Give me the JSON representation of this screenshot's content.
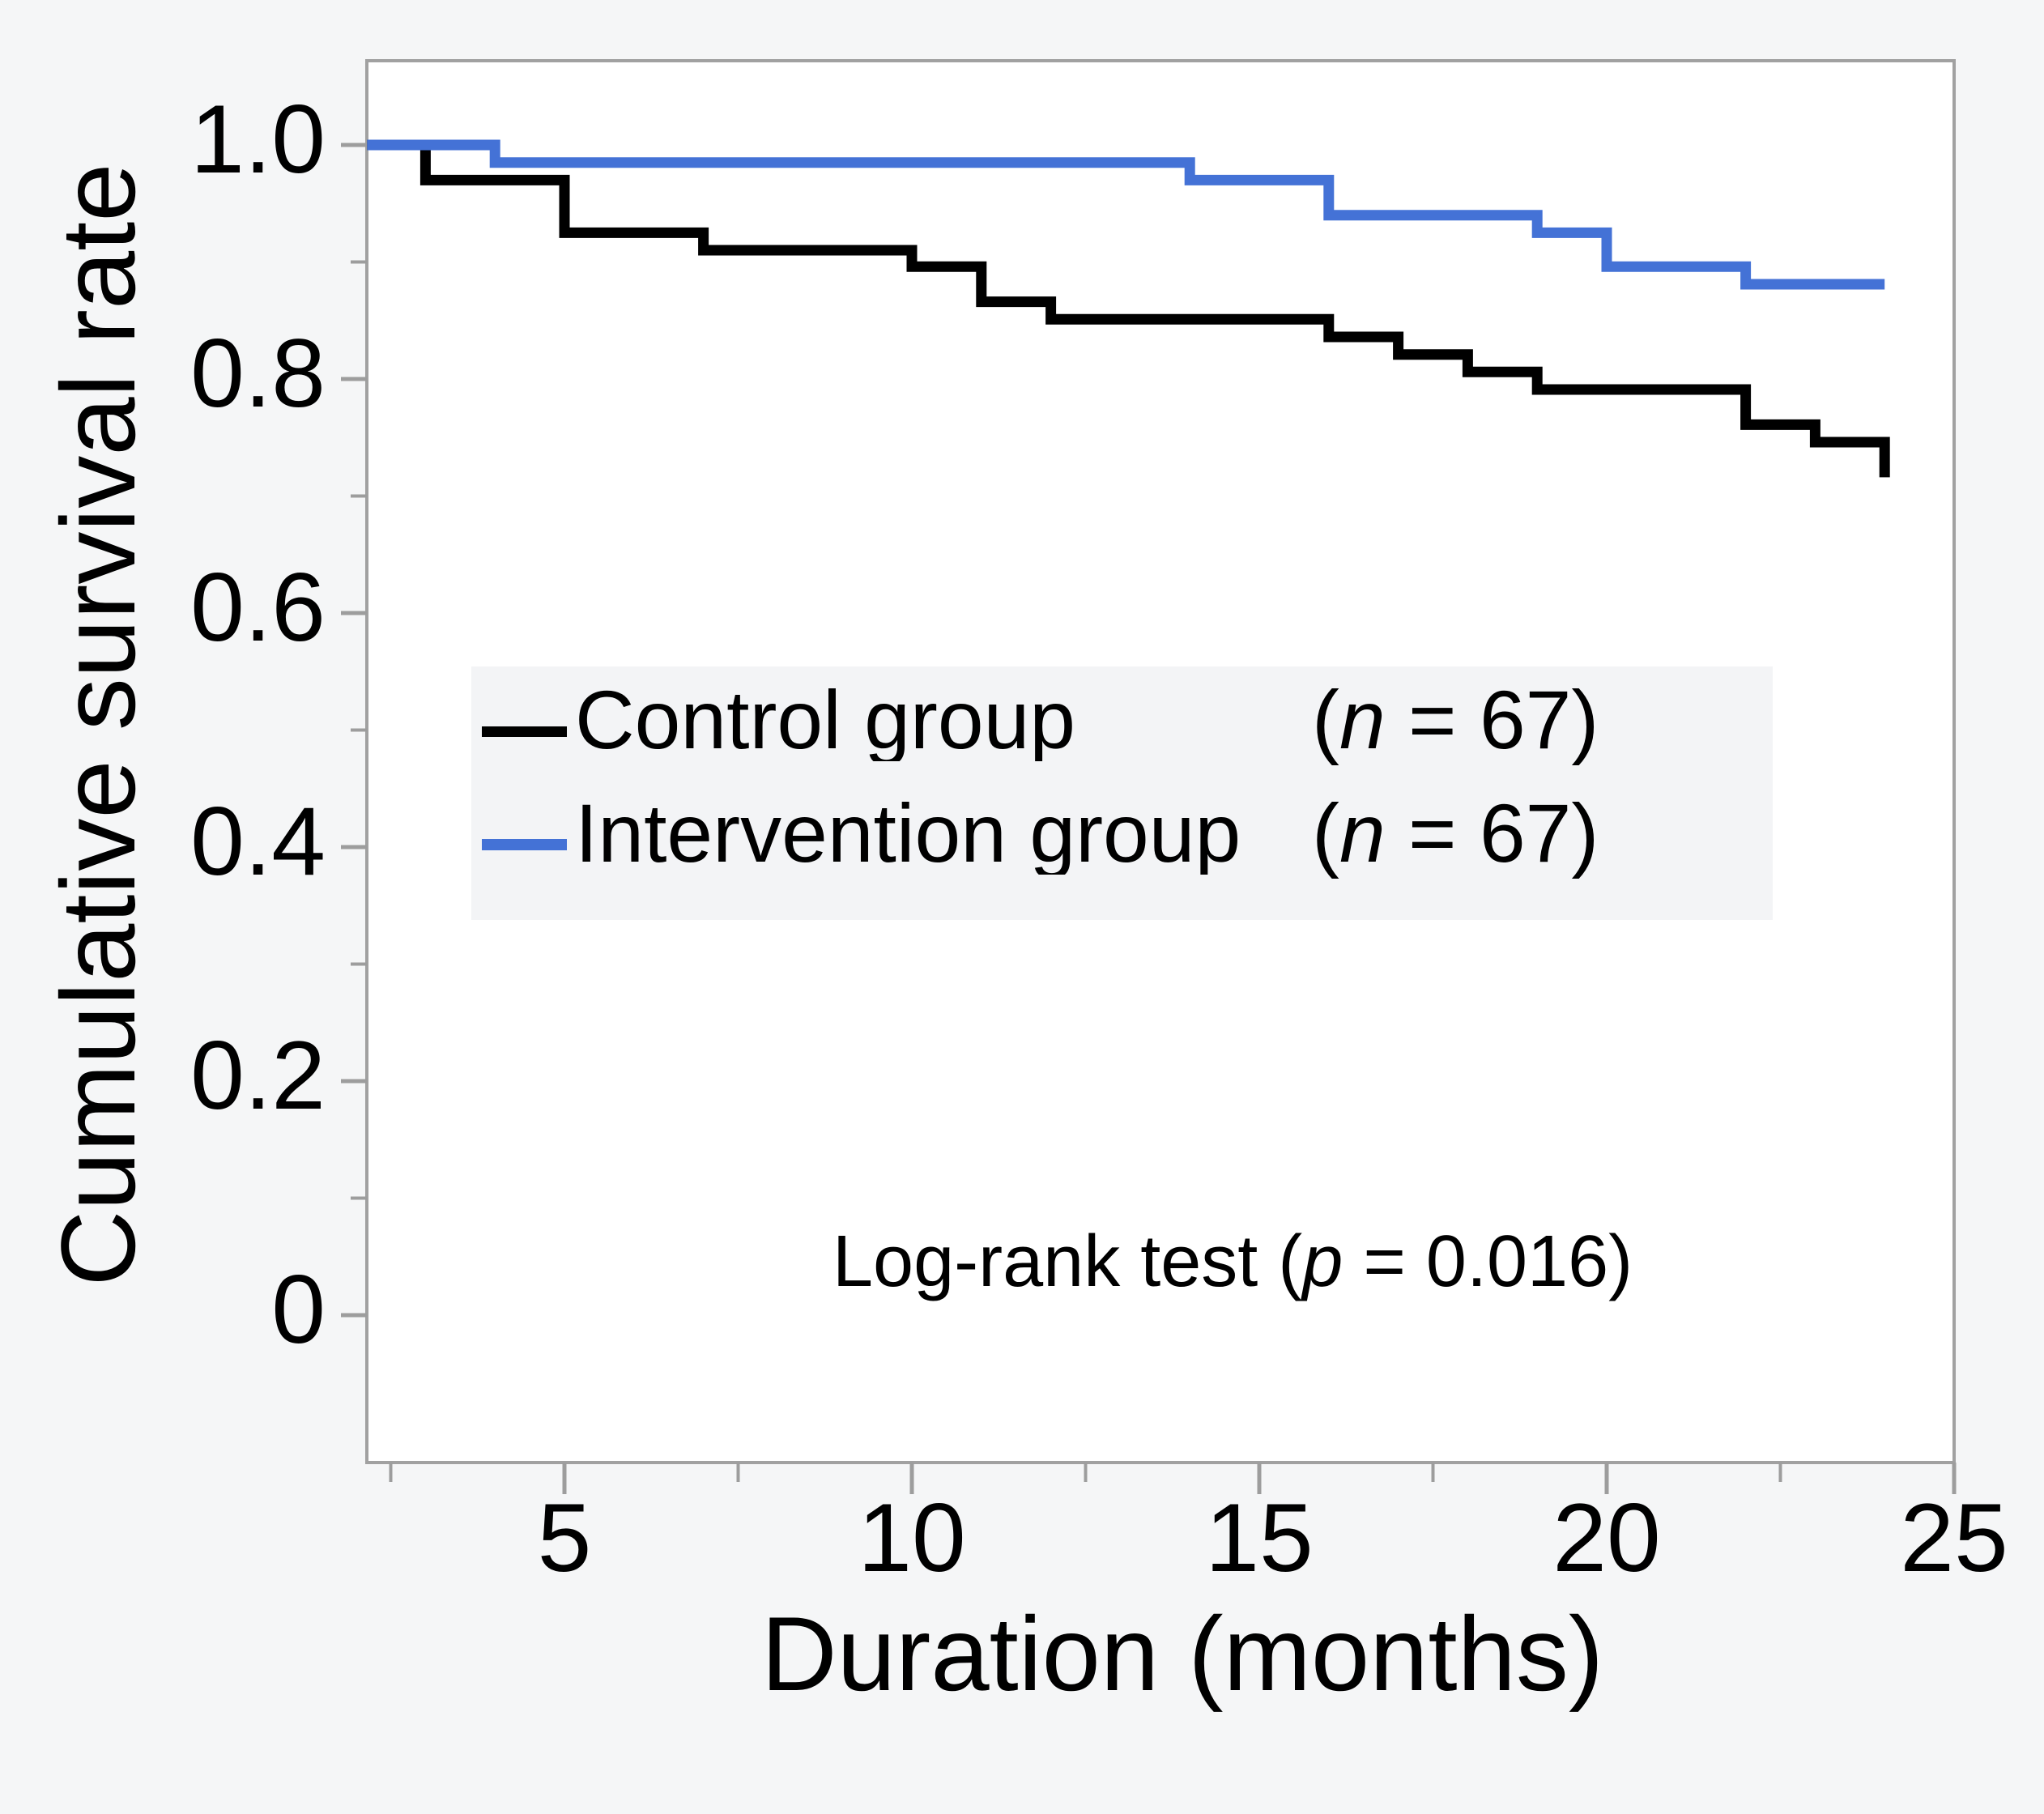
{
  "chart_data": {
    "type": "line",
    "subtype": "kaplan-meier-step-curves",
    "title": "",
    "xlabel": "Duration (months)",
    "ylabel": "Cumulative survival rate",
    "xlim": [
      2.16,
      25
    ],
    "ylim": [
      -0.126,
      1.072
    ],
    "x_ticks": [
      5,
      10,
      15,
      20,
      25
    ],
    "x_minor_ticks": [
      2.5,
      7.5,
      12.5,
      17.5,
      22.5
    ],
    "y_ticks": [
      {
        "v": 1.0,
        "label": "1.0"
      },
      {
        "v": 0.8,
        "label": "0.8"
      },
      {
        "v": 0.6,
        "label": "0.6"
      },
      {
        "v": 0.4,
        "label": "0.4"
      },
      {
        "v": 0.2,
        "label": "0.2"
      },
      {
        "v": 0.0,
        "label": "0"
      }
    ],
    "y_minor_ticks": [
      0.9,
      0.7,
      0.5,
      0.3,
      0.1
    ],
    "grid": "off",
    "legend_position": "inside-center-left",
    "series": [
      {
        "name": "Control group",
        "n": 67,
        "color": "#000000",
        "start": {
          "t": 2.16,
          "s": 1.0
        },
        "drops": [
          {
            "t": 3,
            "s": 0.97
          },
          {
            "t": 5,
            "s": 0.925
          },
          {
            "t": 7,
            "s": 0.91
          },
          {
            "t": 10,
            "s": 0.896
          },
          {
            "t": 11,
            "s": 0.866
          },
          {
            "t": 12,
            "s": 0.851
          },
          {
            "t": 16,
            "s": 0.836
          },
          {
            "t": 17,
            "s": 0.821
          },
          {
            "t": 18,
            "s": 0.806
          },
          {
            "t": 19,
            "s": 0.791
          },
          {
            "t": 22,
            "s": 0.761
          },
          {
            "t": 23,
            "s": 0.746
          },
          {
            "t": 24,
            "s": 0.716
          }
        ],
        "end_t": 24
      },
      {
        "name": "Intervention group",
        "n": 67,
        "color": "#4472d6",
        "start": {
          "t": 2.16,
          "s": 1.0
        },
        "drops": [
          {
            "t": 4,
            "s": 0.985
          },
          {
            "t": 14,
            "s": 0.97
          },
          {
            "t": 16,
            "s": 0.94
          },
          {
            "t": 19,
            "s": 0.925
          },
          {
            "t": 20,
            "s": 0.896
          },
          {
            "t": 22,
            "s": 0.881
          }
        ],
        "end_t": 24
      }
    ],
    "annotation": "Log-rank test (p = 0.016)"
  },
  "legend": {
    "n_open": "(",
    "n_var": "n",
    "n_rest": " = 67)"
  },
  "annotation": {
    "prefix": "Log-rank test (",
    "var": "p",
    "rest": " = 0.016)"
  },
  "colors": {
    "control": "#000000",
    "intervention": "#4472d6",
    "axis_border": "#a1a1a1",
    "tick": "#9d9d9d",
    "plot_background": "#ffffff",
    "page_background": "#f5f6f7",
    "legend_background": "#f3f4f6"
  },
  "stats": {
    "log_rank_p": "0.016",
    "n_control": "67",
    "n_intervention": "67"
  }
}
